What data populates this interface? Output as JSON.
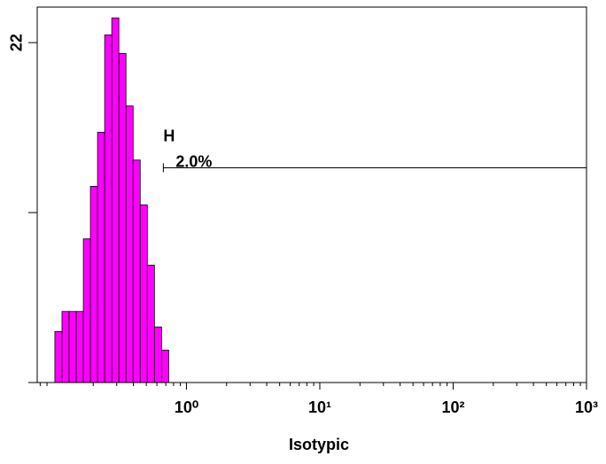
{
  "chart_data": {
    "type": "histogram",
    "x_label": "Isotypic",
    "log_x": true,
    "color": "#ff00ff",
    "edge_color": "#000000",
    "bins": [
      0.1031,
      0.1166,
      0.1318,
      0.1491,
      0.1686,
      0.1905,
      0.2154,
      0.2436,
      0.2754,
      0.3113,
      0.3521,
      0.3981,
      0.45,
      0.5089,
      0.5754,
      0.6506,
      0.7356
    ],
    "values": [
      3.3,
      4.6,
      4.6,
      4.6,
      9.3,
      12.7,
      16.2,
      22.5,
      23.6,
      21.3,
      17.9,
      14.4,
      11.5,
      7.6,
      3.6,
      2.1
    ],
    "xlim": [
      0.076,
      1000
    ],
    "xticks": [
      {
        "value": 1,
        "label": "10⁰"
      },
      {
        "value": 10,
        "label": "10¹"
      },
      {
        "value": 100,
        "label": "10²"
      },
      {
        "value": 1000,
        "label": "10³"
      }
    ],
    "xminor_ticks": [
      0.08,
      0.09,
      0.2,
      0.3,
      0.4,
      0.5,
      0.6,
      0.7,
      0.8,
      0.9,
      2,
      3,
      4,
      5,
      6,
      7,
      8,
      9,
      20,
      30,
      40,
      50,
      60,
      70,
      80,
      90,
      200,
      300,
      400,
      500,
      600,
      700,
      800,
      900
    ],
    "ylim": [
      0,
      24.3
    ],
    "yticks": [
      22
    ],
    "y_unlabeled_ticks": [
      0,
      11
    ],
    "gate": {
      "name": "H",
      "label": "2.0%",
      "x_start": 0.671,
      "x_end": 1000,
      "level": 13.9
    }
  }
}
